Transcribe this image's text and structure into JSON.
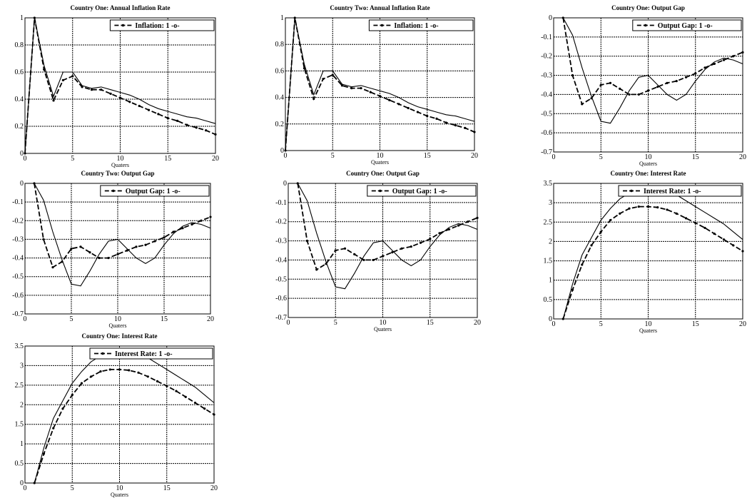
{
  "chart_data": [
    {
      "type": "line",
      "title": "Country One: Annual Inflation Rate",
      "xlabel": "Quaters",
      "legend": "Inflation: 1 -o-",
      "xlim": [
        0,
        20
      ],
      "ylim": [
        0,
        1
      ],
      "xticks": [
        "0",
        "5",
        "10",
        "15",
        "20"
      ],
      "yticks": [
        "0",
        "0.2",
        "0.4",
        "0.6",
        "0.8",
        "1"
      ],
      "grid": true,
      "legend_position": "top-right",
      "series": [
        {
          "style": "solid",
          "x": [
            0,
            1,
            2,
            3,
            4,
            5,
            6,
            7,
            8,
            9,
            10,
            11,
            12,
            13,
            14,
            15,
            16,
            17,
            18,
            19,
            20
          ],
          "y": [
            0,
            1,
            0.65,
            0.42,
            0.6,
            0.6,
            0.5,
            0.48,
            0.49,
            0.47,
            0.45,
            0.43,
            0.4,
            0.36,
            0.33,
            0.31,
            0.29,
            0.27,
            0.26,
            0.24,
            0.22
          ]
        },
        {
          "style": "dashed-markers",
          "x": [
            0,
            1,
            2,
            3,
            4,
            5,
            6,
            7,
            8,
            9,
            10,
            11,
            12,
            13,
            14,
            15,
            16,
            17,
            18,
            19,
            20
          ],
          "y": [
            0,
            1,
            0.62,
            0.39,
            0.54,
            0.57,
            0.49,
            0.47,
            0.47,
            0.44,
            0.41,
            0.38,
            0.35,
            0.32,
            0.29,
            0.26,
            0.24,
            0.21,
            0.19,
            0.17,
            0.14
          ]
        }
      ]
    },
    {
      "type": "line",
      "title": "Country Two: Annual Inflation Rate",
      "xlabel": "Quaters",
      "legend": "Inflation: 1 -o-",
      "xlim": [
        0,
        20
      ],
      "ylim": [
        0,
        1
      ],
      "xticks": [
        "0",
        "5",
        "10",
        "15",
        "20"
      ],
      "yticks": [
        "0",
        "0.2",
        "0.4",
        "0.6",
        "0.8",
        "1"
      ],
      "grid": true,
      "legend_position": "top-right",
      "series": [
        {
          "style": "solid",
          "x": [
            0,
            1,
            2,
            3,
            4,
            5,
            6,
            7,
            8,
            9,
            10,
            11,
            12,
            13,
            14,
            15,
            16,
            17,
            18,
            19,
            20
          ],
          "y": [
            0,
            1,
            0.65,
            0.42,
            0.6,
            0.6,
            0.5,
            0.48,
            0.49,
            0.47,
            0.45,
            0.43,
            0.4,
            0.36,
            0.33,
            0.31,
            0.29,
            0.27,
            0.26,
            0.24,
            0.22
          ]
        },
        {
          "style": "dashed-markers",
          "x": [
            0,
            1,
            2,
            3,
            4,
            5,
            6,
            7,
            8,
            9,
            10,
            11,
            12,
            13,
            14,
            15,
            16,
            17,
            18,
            19,
            20
          ],
          "y": [
            0,
            1,
            0.62,
            0.39,
            0.54,
            0.57,
            0.49,
            0.47,
            0.47,
            0.44,
            0.41,
            0.38,
            0.35,
            0.32,
            0.29,
            0.26,
            0.24,
            0.21,
            0.19,
            0.17,
            0.14
          ]
        }
      ]
    },
    {
      "type": "line",
      "title": "Country One: Output Gap",
      "xlabel": "Quaters",
      "legend": "Output Gap: 1 -o-",
      "xlim": [
        0,
        20
      ],
      "ylim": [
        -0.7,
        0
      ],
      "xticks": [
        "0",
        "5",
        "10",
        "15",
        "20"
      ],
      "yticks": [
        "-0.7",
        "-0.6",
        "-0.5",
        "-0.4",
        "-0.3",
        "-0.2",
        "-0.1",
        "0"
      ],
      "grid": true,
      "legend_position": "top-right",
      "series": [
        {
          "style": "solid",
          "x": [
            1,
            2,
            3,
            4,
            5,
            6,
            7,
            8,
            9,
            10,
            11,
            12,
            13,
            14,
            15,
            16,
            17,
            18,
            19,
            20
          ],
          "y": [
            0,
            -0.09,
            -0.26,
            -0.41,
            -0.54,
            -0.55,
            -0.47,
            -0.38,
            -0.31,
            -0.3,
            -0.35,
            -0.4,
            -0.43,
            -0.4,
            -0.33,
            -0.27,
            -0.23,
            -0.21,
            -0.22,
            -0.24
          ]
        },
        {
          "style": "dashed-markers",
          "x": [
            1,
            2,
            3,
            4,
            5,
            6,
            7,
            8,
            9,
            10,
            11,
            12,
            13,
            14,
            15,
            16,
            17,
            18,
            19,
            20
          ],
          "y": [
            0,
            -0.3,
            -0.45,
            -0.42,
            -0.35,
            -0.34,
            -0.37,
            -0.4,
            -0.4,
            -0.38,
            -0.36,
            -0.34,
            -0.33,
            -0.31,
            -0.29,
            -0.26,
            -0.24,
            -0.22,
            -0.2,
            -0.18
          ]
        }
      ]
    },
    {
      "type": "line",
      "title": "Country Two: Output Gap",
      "xlabel": "Quaters",
      "legend": "Output Gap: 1 -o-",
      "xlim": [
        0,
        20
      ],
      "ylim": [
        -0.7,
        0
      ],
      "xticks": [
        "0",
        "5",
        "10",
        "15",
        "20"
      ],
      "yticks": [
        "-0.7",
        "-0.6",
        "-0.5",
        "-0.4",
        "-0.3",
        "-0.2",
        "-0.1",
        "0"
      ],
      "grid": true,
      "legend_position": "top-right",
      "series": [
        {
          "style": "solid",
          "x": [
            1,
            2,
            3,
            4,
            5,
            6,
            7,
            8,
            9,
            10,
            11,
            12,
            13,
            14,
            15,
            16,
            17,
            18,
            19,
            20
          ],
          "y": [
            0,
            -0.09,
            -0.26,
            -0.41,
            -0.54,
            -0.55,
            -0.47,
            -0.38,
            -0.31,
            -0.3,
            -0.35,
            -0.4,
            -0.43,
            -0.4,
            -0.33,
            -0.27,
            -0.23,
            -0.21,
            -0.22,
            -0.24
          ]
        },
        {
          "style": "dashed-markers",
          "x": [
            1,
            2,
            3,
            4,
            5,
            6,
            7,
            8,
            9,
            10,
            11,
            12,
            13,
            14,
            15,
            16,
            17,
            18,
            19,
            20
          ],
          "y": [
            0,
            -0.3,
            -0.45,
            -0.42,
            -0.35,
            -0.34,
            -0.37,
            -0.4,
            -0.4,
            -0.38,
            -0.36,
            -0.34,
            -0.33,
            -0.31,
            -0.29,
            -0.26,
            -0.24,
            -0.22,
            -0.2,
            -0.18
          ]
        }
      ]
    },
    {
      "type": "line",
      "title": "Country One: Output Gap",
      "xlabel": "Quaters",
      "legend": "Output Gap: 1 -o-",
      "xlim": [
        0,
        20
      ],
      "ylim": [
        -0.7,
        0
      ],
      "xticks": [
        "0",
        "5",
        "10",
        "15",
        "20"
      ],
      "yticks": [
        "-0.7",
        "-0.6",
        "-0.5",
        "-0.4",
        "-0.3",
        "-0.2",
        "-0.1",
        "0"
      ],
      "grid": true,
      "legend_position": "top-right",
      "series": [
        {
          "style": "solid",
          "x": [
            1,
            2,
            3,
            4,
            5,
            6,
            7,
            8,
            9,
            10,
            11,
            12,
            13,
            14,
            15,
            16,
            17,
            18,
            19,
            20
          ],
          "y": [
            0,
            -0.09,
            -0.26,
            -0.41,
            -0.54,
            -0.55,
            -0.47,
            -0.38,
            -0.31,
            -0.3,
            -0.35,
            -0.4,
            -0.43,
            -0.4,
            -0.33,
            -0.27,
            -0.23,
            -0.21,
            -0.22,
            -0.24
          ]
        },
        {
          "style": "dashed-markers",
          "x": [
            1,
            2,
            3,
            4,
            5,
            6,
            7,
            8,
            9,
            10,
            11,
            12,
            13,
            14,
            15,
            16,
            17,
            18,
            19,
            20
          ],
          "y": [
            0,
            -0.3,
            -0.45,
            -0.42,
            -0.35,
            -0.34,
            -0.37,
            -0.4,
            -0.4,
            -0.38,
            -0.36,
            -0.34,
            -0.33,
            -0.31,
            -0.29,
            -0.26,
            -0.24,
            -0.22,
            -0.2,
            -0.18
          ]
        }
      ]
    },
    {
      "type": "line",
      "title": "Country One: Interest Rate",
      "xlabel": "Quaters",
      "legend": "Interest Rate: 1 -o-",
      "xlim": [
        0,
        20
      ],
      "ylim": [
        0,
        3.5
      ],
      "xticks": [
        "0",
        "5",
        "10",
        "15",
        "20"
      ],
      "yticks": [
        "0",
        "0.5",
        "1",
        "1.5",
        "2",
        "2.5",
        "3",
        "3.5"
      ],
      "grid": true,
      "legend_position": "top-right",
      "series": [
        {
          "style": "solid",
          "x": [
            1,
            2,
            3,
            4,
            5,
            6,
            7,
            8,
            9,
            10,
            11,
            12,
            13,
            14,
            15,
            16,
            17,
            18,
            19,
            20
          ],
          "y": [
            0,
            0.9,
            1.65,
            2.1,
            2.55,
            2.85,
            3.1,
            3.25,
            3.35,
            3.4,
            3.35,
            3.3,
            3.2,
            3.05,
            2.9,
            2.75,
            2.6,
            2.45,
            2.25,
            2.05
          ]
        },
        {
          "style": "dashed-markers",
          "x": [
            1,
            2,
            3,
            4,
            5,
            6,
            7,
            8,
            9,
            10,
            11,
            12,
            13,
            14,
            15,
            16,
            17,
            18,
            19,
            20
          ],
          "y": [
            0,
            0.75,
            1.4,
            1.9,
            2.25,
            2.55,
            2.72,
            2.85,
            2.9,
            2.9,
            2.88,
            2.82,
            2.72,
            2.6,
            2.48,
            2.35,
            2.2,
            2.05,
            1.9,
            1.75
          ]
        }
      ]
    },
    {
      "type": "line",
      "title": "Country One: Interest Rate",
      "xlabel": "Quaters",
      "legend": "Interest Rate: 1 -o-",
      "xlim": [
        0,
        20
      ],
      "ylim": [
        0,
        3.5
      ],
      "xticks": [
        "0",
        "5",
        "10",
        "15",
        "20"
      ],
      "yticks": [
        "0",
        "0.5",
        "1",
        "1.5",
        "2",
        "2.5",
        "3",
        "3.5"
      ],
      "grid": true,
      "legend_position": "top-right",
      "series": [
        {
          "style": "solid",
          "x": [
            1,
            2,
            3,
            4,
            5,
            6,
            7,
            8,
            9,
            10,
            11,
            12,
            13,
            14,
            15,
            16,
            17,
            18,
            19,
            20
          ],
          "y": [
            0,
            0.9,
            1.65,
            2.1,
            2.55,
            2.85,
            3.1,
            3.25,
            3.35,
            3.4,
            3.35,
            3.3,
            3.2,
            3.05,
            2.9,
            2.75,
            2.6,
            2.45,
            2.25,
            2.05
          ]
        },
        {
          "style": "dashed-markers",
          "x": [
            1,
            2,
            3,
            4,
            5,
            6,
            7,
            8,
            9,
            10,
            11,
            12,
            13,
            14,
            15,
            16,
            17,
            18,
            19,
            20
          ],
          "y": [
            0,
            0.75,
            1.4,
            1.9,
            2.25,
            2.55,
            2.72,
            2.85,
            2.9,
            2.9,
            2.88,
            2.82,
            2.72,
            2.6,
            2.48,
            2.35,
            2.2,
            2.05,
            1.9,
            1.75
          ]
        }
      ]
    }
  ]
}
